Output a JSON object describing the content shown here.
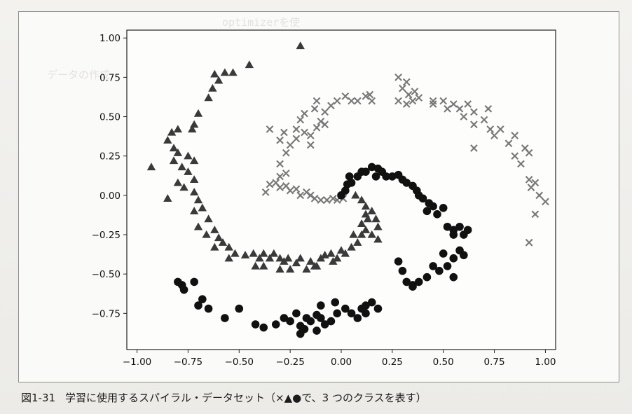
{
  "figure": {
    "caption_number": "図1-31",
    "caption_text": "学習に使用するスパイラル・データセット（×▲●で、3 つのクラスを表す）"
  },
  "chart_data": {
    "type": "scatter",
    "title": "",
    "xlabel": "",
    "ylabel": "",
    "xlim": [
      -1.05,
      1.05
    ],
    "ylim": [
      -0.98,
      1.05
    ],
    "grid": false,
    "xticks": [
      -1.0,
      -0.75,
      -0.5,
      -0.25,
      0.0,
      0.25,
      0.5,
      0.75,
      1.0
    ],
    "xtick_labels": [
      "−1.00",
      "−0.75",
      "−0.50",
      "−0.25",
      "0.00",
      "0.25",
      "0.50",
      "0.75",
      "1.00"
    ],
    "yticks": [
      1.0,
      0.75,
      0.5,
      0.25,
      0.0,
      -0.25,
      -0.5,
      -0.75
    ],
    "ytick_labels": [
      "1.00",
      "0.75",
      "0.50",
      "0.25",
      "0.00",
      "−0.25",
      "−0.50",
      "−0.75"
    ],
    "series": [
      {
        "marker": "x",
        "color": "#777777",
        "points": [
          [
            -0.04,
            -0.02
          ],
          [
            -0.02,
            -0.03
          ],
          [
            0.01,
            -0.02
          ],
          [
            -0.07,
            -0.03
          ],
          [
            -0.1,
            -0.03
          ],
          [
            -0.13,
            -0.02
          ],
          [
            -0.15,
            0.0
          ],
          [
            -0.17,
            0.02
          ],
          [
            -0.2,
            0.0
          ],
          [
            -0.22,
            0.04
          ],
          [
            -0.25,
            0.03
          ],
          [
            -0.27,
            0.06
          ],
          [
            -0.3,
            0.05
          ],
          [
            -0.32,
            0.08
          ],
          [
            -0.35,
            0.07
          ],
          [
            -0.37,
            0.02
          ],
          [
            -0.3,
            0.12
          ],
          [
            -0.27,
            0.14
          ],
          [
            -0.3,
            0.2
          ],
          [
            -0.27,
            0.27
          ],
          [
            -0.25,
            0.32
          ],
          [
            -0.28,
            0.4
          ],
          [
            -0.22,
            0.42
          ],
          [
            -0.2,
            0.48
          ],
          [
            -0.18,
            0.52
          ],
          [
            -0.22,
            0.36
          ],
          [
            -0.18,
            0.4
          ],
          [
            -0.15,
            0.38
          ],
          [
            -0.12,
            0.43
          ],
          [
            -0.1,
            0.47
          ],
          [
            -0.15,
            0.32
          ],
          [
            -0.08,
            0.53
          ],
          [
            -0.05,
            0.57
          ],
          [
            -0.13,
            0.55
          ],
          [
            -0.02,
            0.6
          ],
          [
            0.02,
            0.63
          ],
          [
            0.05,
            0.6
          ],
          [
            0.08,
            0.6
          ],
          [
            0.12,
            0.63
          ],
          [
            0.15,
            0.6
          ],
          [
            -0.08,
            0.45
          ],
          [
            -0.12,
            0.6
          ],
          [
            -0.3,
            0.35
          ],
          [
            -0.35,
            0.42
          ],
          [
            0.14,
            0.64
          ],
          [
            0.28,
            0.6
          ],
          [
            0.32,
            0.58
          ],
          [
            0.35,
            0.6
          ],
          [
            0.38,
            0.62
          ],
          [
            0.33,
            0.64
          ],
          [
            0.3,
            0.68
          ],
          [
            0.32,
            0.72
          ],
          [
            0.28,
            0.75
          ],
          [
            0.36,
            0.66
          ],
          [
            0.45,
            0.6
          ],
          [
            0.5,
            0.6
          ],
          [
            0.52,
            0.55
          ],
          [
            0.55,
            0.58
          ],
          [
            0.58,
            0.55
          ],
          [
            0.62,
            0.58
          ],
          [
            0.65,
            0.53
          ],
          [
            0.6,
            0.5
          ],
          [
            0.65,
            0.45
          ],
          [
            0.7,
            0.48
          ],
          [
            0.73,
            0.42
          ],
          [
            0.72,
            0.55
          ],
          [
            0.75,
            0.38
          ],
          [
            0.78,
            0.42
          ],
          [
            0.65,
            0.3
          ],
          [
            0.82,
            0.33
          ],
          [
            0.85,
            0.38
          ],
          [
            0.85,
            0.25
          ],
          [
            0.88,
            0.2
          ],
          [
            0.9,
            0.3
          ],
          [
            0.92,
            0.27
          ],
          [
            0.92,
            0.1
          ],
          [
            0.95,
            0.08
          ],
          [
            0.93,
            0.05
          ],
          [
            0.97,
            0.0
          ],
          [
            1.0,
            -0.04
          ],
          [
            0.95,
            -0.12
          ],
          [
            0.92,
            -0.3
          ],
          [
            0.45,
            0.58
          ]
        ]
      },
      {
        "marker": "^",
        "color": "#3a3a3a",
        "points": [
          [
            -0.2,
            0.95
          ],
          [
            -0.45,
            0.83
          ],
          [
            -0.57,
            0.78
          ],
          [
            -0.53,
            0.78
          ],
          [
            -0.62,
            0.77
          ],
          [
            -0.6,
            0.73
          ],
          [
            -0.63,
            0.68
          ],
          [
            -0.65,
            0.62
          ],
          [
            -0.7,
            0.52
          ],
          [
            -0.72,
            0.45
          ],
          [
            -0.73,
            0.42
          ],
          [
            -0.8,
            0.42
          ],
          [
            -0.83,
            0.4
          ],
          [
            -0.85,
            0.35
          ],
          [
            -0.82,
            0.3
          ],
          [
            -0.8,
            0.27
          ],
          [
            -0.75,
            0.25
          ],
          [
            -0.72,
            0.22
          ],
          [
            -0.82,
            0.22
          ],
          [
            -0.78,
            0.18
          ],
          [
            -0.93,
            0.18
          ],
          [
            -0.75,
            0.15
          ],
          [
            -0.72,
            0.1
          ],
          [
            -0.8,
            0.08
          ],
          [
            -0.77,
            0.05
          ],
          [
            -0.72,
            0.02
          ],
          [
            -0.85,
            -0.02
          ],
          [
            -0.7,
            -0.03
          ],
          [
            -0.68,
            -0.08
          ],
          [
            -0.72,
            -0.1
          ],
          [
            -0.65,
            -0.15
          ],
          [
            -0.7,
            -0.2
          ],
          [
            -0.62,
            -0.22
          ],
          [
            -0.66,
            -0.25
          ],
          [
            -0.6,
            -0.27
          ],
          [
            -0.58,
            -0.3
          ],
          [
            -0.62,
            -0.33
          ],
          [
            -0.55,
            -0.33
          ],
          [
            -0.52,
            -0.37
          ],
          [
            -0.55,
            -0.4
          ],
          [
            -0.47,
            -0.38
          ],
          [
            -0.43,
            -0.37
          ],
          [
            -0.4,
            -0.4
          ],
          [
            -0.38,
            -0.37
          ],
          [
            -0.35,
            -0.4
          ],
          [
            -0.33,
            -0.37
          ],
          [
            -0.3,
            -0.4
          ],
          [
            -0.28,
            -0.42
          ],
          [
            -0.26,
            -0.4
          ],
          [
            -0.22,
            -0.43
          ],
          [
            -0.3,
            -0.47
          ],
          [
            -0.25,
            -0.47
          ],
          [
            -0.2,
            -0.4
          ],
          [
            -0.17,
            -0.47
          ],
          [
            -0.15,
            -0.42
          ],
          [
            -0.12,
            -0.45
          ],
          [
            -0.1,
            -0.4
          ],
          [
            -0.08,
            -0.38
          ],
          [
            -0.05,
            -0.37
          ],
          [
            -0.04,
            -0.42
          ],
          [
            -0.02,
            -0.4
          ],
          [
            0.0,
            -0.35
          ],
          [
            0.02,
            -0.37
          ],
          [
            0.05,
            -0.33
          ],
          [
            0.08,
            -0.3
          ],
          [
            0.06,
            -0.25
          ],
          [
            0.1,
            -0.25
          ],
          [
            0.12,
            -0.22
          ],
          [
            0.15,
            -0.25
          ],
          [
            0.18,
            -0.2
          ],
          [
            0.17,
            -0.15
          ],
          [
            0.15,
            -0.1
          ],
          [
            0.12,
            -0.07
          ],
          [
            0.1,
            -0.03
          ],
          [
            0.07,
            0.0
          ],
          [
            0.12,
            -0.12
          ],
          [
            0.13,
            -0.15
          ],
          [
            0.18,
            -0.28
          ],
          [
            0.1,
            -0.18
          ],
          [
            -0.42,
            -0.45
          ],
          [
            -0.38,
            -0.45
          ],
          [
            -0.13,
            -0.45
          ]
        ]
      },
      {
        "marker": "o",
        "color": "#111111",
        "points": [
          [
            0.0,
            0.0
          ],
          [
            0.02,
            0.03
          ],
          [
            0.03,
            0.07
          ],
          [
            0.05,
            0.08
          ],
          [
            0.04,
            0.12
          ],
          [
            0.08,
            0.12
          ],
          [
            0.1,
            0.15
          ],
          [
            0.12,
            0.15
          ],
          [
            0.15,
            0.18
          ],
          [
            0.18,
            0.17
          ],
          [
            0.2,
            0.15
          ],
          [
            0.17,
            0.12
          ],
          [
            0.22,
            0.12
          ],
          [
            0.25,
            0.12
          ],
          [
            0.28,
            0.13
          ],
          [
            0.3,
            0.1
          ],
          [
            0.32,
            0.08
          ],
          [
            0.35,
            0.06
          ],
          [
            0.37,
            0.03
          ],
          [
            0.38,
            0.0
          ],
          [
            0.4,
            -0.02
          ],
          [
            0.43,
            -0.05
          ],
          [
            0.45,
            -0.07
          ],
          [
            0.42,
            -0.1
          ],
          [
            0.47,
            -0.12
          ],
          [
            0.5,
            -0.08
          ],
          [
            0.52,
            -0.2
          ],
          [
            0.55,
            -0.22
          ],
          [
            0.58,
            -0.2
          ],
          [
            0.55,
            -0.25
          ],
          [
            0.6,
            -0.25
          ],
          [
            0.62,
            -0.22
          ],
          [
            0.58,
            -0.35
          ],
          [
            0.55,
            -0.4
          ],
          [
            0.5,
            -0.37
          ],
          [
            0.52,
            -0.45
          ],
          [
            0.48,
            -0.48
          ],
          [
            0.45,
            -0.45
          ],
          [
            0.42,
            -0.52
          ],
          [
            0.38,
            -0.55
          ],
          [
            0.35,
            -0.57
          ],
          [
            0.32,
            -0.55
          ],
          [
            0.55,
            -0.52
          ],
          [
            0.6,
            -0.38
          ],
          [
            0.3,
            -0.48
          ],
          [
            0.28,
            -0.42
          ],
          [
            0.35,
            -0.58
          ],
          [
            0.15,
            -0.68
          ],
          [
            0.18,
            -0.72
          ],
          [
            0.12,
            -0.75
          ],
          [
            0.1,
            -0.72
          ],
          [
            0.08,
            -0.78
          ],
          [
            0.05,
            -0.75
          ],
          [
            0.02,
            -0.72
          ],
          [
            -0.02,
            -0.75
          ],
          [
            -0.05,
            -0.8
          ],
          [
            -0.08,
            -0.82
          ],
          [
            -0.03,
            -0.68
          ],
          [
            -0.1,
            -0.7
          ],
          [
            -0.12,
            -0.76
          ],
          [
            -0.15,
            -0.8
          ],
          [
            -0.12,
            -0.86
          ],
          [
            -0.18,
            -0.85
          ],
          [
            -0.2,
            -0.88
          ],
          [
            -0.2,
            -0.83
          ],
          [
            -0.25,
            -0.8
          ],
          [
            -0.22,
            -0.75
          ],
          [
            -0.28,
            -0.78
          ],
          [
            -0.32,
            -0.82
          ],
          [
            -0.38,
            -0.84
          ],
          [
            -0.42,
            -0.82
          ],
          [
            -0.5,
            -0.72
          ],
          [
            -0.57,
            -0.78
          ],
          [
            -0.65,
            -0.72
          ],
          [
            -0.68,
            -0.66
          ],
          [
            -0.7,
            -0.7
          ],
          [
            -0.72,
            -0.55
          ],
          [
            -0.78,
            -0.57
          ],
          [
            -0.8,
            -0.55
          ],
          [
            -0.77,
            -0.6
          ],
          [
            -0.1,
            -0.78
          ],
          [
            0.12,
            -0.7
          ],
          [
            -0.17,
            -0.78
          ]
        ]
      }
    ]
  }
}
